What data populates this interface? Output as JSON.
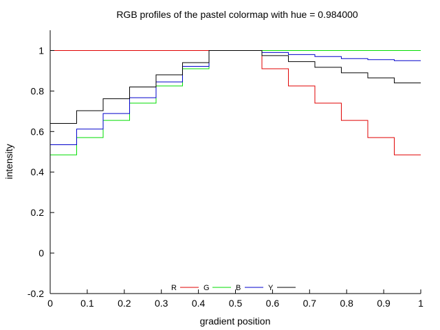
{
  "chart_data": {
    "type": "line",
    "title": "RGB profiles of the pastel colormap with hue = 0.984000",
    "xlabel": "gradient position",
    "ylabel": "intensity",
    "xlim": [
      0,
      1
    ],
    "ylim": [
      -0.2,
      1.1
    ],
    "x_ticks": [
      "0",
      "0.1",
      "0.2",
      "0.3",
      "0.4",
      "0.5",
      "0.6",
      "0.7",
      "0.8",
      "0.9",
      "1"
    ],
    "y_ticks": [
      "-0.2",
      "0",
      "0.2",
      "0.4",
      "0.6",
      "0.8",
      "1"
    ],
    "grid": false,
    "legend_position": "bottom-center",
    "x": [
      0,
      0.0714,
      0.1429,
      0.2143,
      0.2857,
      0.3571,
      0.4286,
      0.5714,
      0.6429,
      0.7143,
      0.7857,
      0.8571,
      0.9286,
      1
    ],
    "series": [
      {
        "name": "R",
        "color": "#e00000",
        "step": "post",
        "values": [
          1,
          1,
          1,
          1,
          1,
          1,
          1,
          0.91,
          0.825,
          0.74,
          0.655,
          0.57,
          0.485,
          0.485
        ]
      },
      {
        "name": "G",
        "color": "#00dd00",
        "step": "post",
        "values": [
          0.485,
          0.57,
          0.655,
          0.74,
          0.825,
          0.91,
          1,
          1,
          1,
          1,
          1,
          1,
          1,
          1
        ]
      },
      {
        "name": "B",
        "color": "#0000cc",
        "step": "post",
        "values": [
          0.535,
          0.612,
          0.689,
          0.767,
          0.845,
          0.922,
          1,
          0.99,
          0.98,
          0.97,
          0.96,
          0.955,
          0.95,
          0.95
        ]
      },
      {
        "name": "Y",
        "color": "#000000",
        "step": "post",
        "values": [
          0.64,
          0.703,
          0.762,
          0.82,
          0.88,
          0.94,
          1,
          0.975,
          0.945,
          0.917,
          0.89,
          0.865,
          0.84,
          0.84
        ]
      }
    ]
  }
}
